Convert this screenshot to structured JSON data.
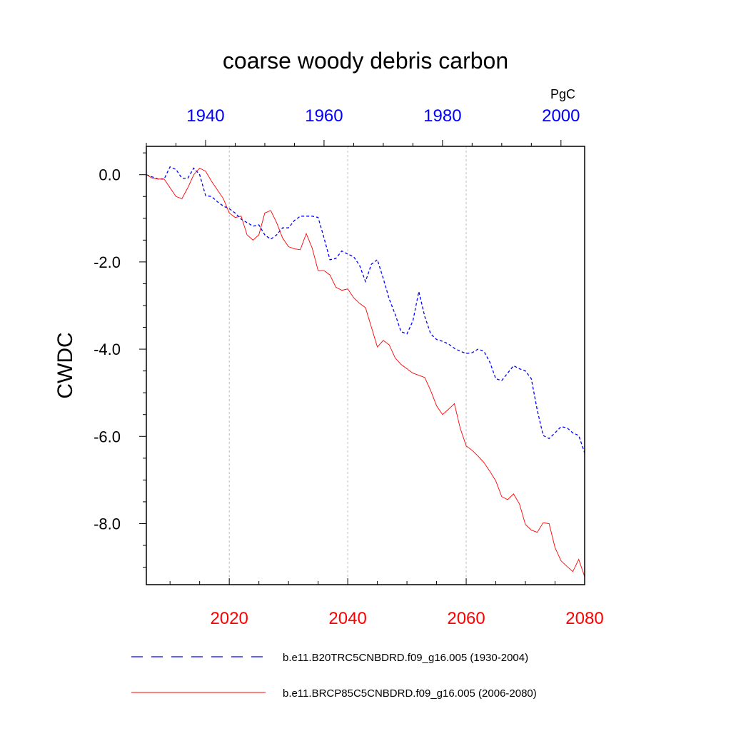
{
  "chart_data": {
    "type": "line",
    "title": "coarse woody debris carbon",
    "ylabel": "CWDC",
    "units": "PgC",
    "ylim": [
      -9.4,
      0.65
    ],
    "yticks": [
      0.0,
      -2.0,
      -4.0,
      -6.0,
      -8.0
    ],
    "ytick_labels": [
      "0.0",
      "-2.0",
      "-4.0",
      "-6.0",
      "-8.0"
    ],
    "grid": "vertical dashed at labeled bottom ticks",
    "legend_position": "bottom",
    "series": [
      {
        "name": "b.e11.B20TRC5CNBDRD.f09_g16.005 (1930-2004)",
        "axis": "top",
        "color": "#0000ff",
        "dash": "dashed",
        "xlim": [
          1930,
          2004
        ],
        "xticks": [
          1940,
          1960,
          1980,
          2000
        ],
        "xtick_labels": [
          "1940",
          "1960",
          "1980",
          "2000"
        ],
        "x": [
          1930,
          1931,
          1932,
          1933,
          1934,
          1935,
          1936,
          1937,
          1938,
          1939,
          1940,
          1941,
          1942,
          1943,
          1944,
          1945,
          1946,
          1947,
          1948,
          1949,
          1950,
          1951,
          1952,
          1953,
          1954,
          1955,
          1956,
          1957,
          1958,
          1959,
          1960,
          1961,
          1962,
          1963,
          1964,
          1965,
          1966,
          1967,
          1968,
          1969,
          1970,
          1971,
          1972,
          1973,
          1974,
          1975,
          1976,
          1977,
          1978,
          1979,
          1980,
          1981,
          1982,
          1983,
          1984,
          1985,
          1986,
          1987,
          1988,
          1989,
          1990,
          1991,
          1992,
          1993,
          1994,
          1995,
          1996,
          1997,
          1998,
          1999,
          2000,
          2001,
          2002,
          2003,
          2004
        ],
        "values": [
          0.0,
          -0.05,
          -0.1,
          -0.1,
          0.18,
          0.12,
          -0.08,
          -0.08,
          0.15,
          0.0,
          -0.48,
          -0.5,
          -0.62,
          -0.72,
          -0.78,
          -0.88,
          -1.02,
          -1.1,
          -1.18,
          -1.15,
          -1.38,
          -1.48,
          -1.38,
          -1.22,
          -1.22,
          -1.05,
          -0.95,
          -0.95,
          -0.95,
          -0.98,
          -1.45,
          -1.95,
          -1.92,
          -1.75,
          -1.82,
          -1.88,
          -2.08,
          -2.45,
          -2.05,
          -1.95,
          -2.38,
          -2.85,
          -3.2,
          -3.6,
          -3.65,
          -3.35,
          -2.68,
          -3.25,
          -3.65,
          -3.78,
          -3.82,
          -3.88,
          -3.98,
          -4.05,
          -4.1,
          -4.08,
          -4.0,
          -4.05,
          -4.3,
          -4.68,
          -4.72,
          -4.55,
          -4.38,
          -4.45,
          -4.5,
          -4.68,
          -5.4,
          -5.98,
          -6.05,
          -5.92,
          -5.78,
          -5.8,
          -5.92,
          -5.98,
          -6.38
        ]
      },
      {
        "name": "b.e11.BRCP85C5CNBDRD.f09_g16.005 (2006-2080)",
        "axis": "bottom",
        "color": "#ff0000",
        "dash": "solid",
        "xlim": [
          2006,
          2080
        ],
        "xticks": [
          2020,
          2040,
          2060,
          2080
        ],
        "xtick_labels": [
          "2020",
          "2040",
          "2060",
          "2080"
        ],
        "x": [
          2006,
          2007,
          2008,
          2009,
          2010,
          2011,
          2012,
          2013,
          2014,
          2015,
          2016,
          2017,
          2018,
          2019,
          2020,
          2021,
          2022,
          2023,
          2024,
          2025,
          2026,
          2027,
          2028,
          2029,
          2030,
          2031,
          2032,
          2033,
          2034,
          2035,
          2036,
          2037,
          2038,
          2039,
          2040,
          2041,
          2042,
          2043,
          2044,
          2045,
          2046,
          2047,
          2048,
          2049,
          2050,
          2051,
          2052,
          2053,
          2054,
          2055,
          2056,
          2057,
          2058,
          2059,
          2060,
          2061,
          2062,
          2063,
          2064,
          2065,
          2066,
          2067,
          2068,
          2069,
          2070,
          2071,
          2072,
          2073,
          2074,
          2075,
          2076,
          2077,
          2078,
          2079,
          2080
        ],
        "values": [
          0.0,
          -0.08,
          -0.1,
          -0.1,
          -0.3,
          -0.5,
          -0.55,
          -0.3,
          0.0,
          0.15,
          0.08,
          -0.15,
          -0.35,
          -0.55,
          -0.88,
          -0.98,
          -0.95,
          -1.38,
          -1.5,
          -1.38,
          -0.88,
          -0.82,
          -1.1,
          -1.45,
          -1.65,
          -1.7,
          -1.72,
          -1.35,
          -1.68,
          -2.2,
          -2.2,
          -2.3,
          -2.58,
          -2.65,
          -2.62,
          -2.82,
          -2.95,
          -3.05,
          -3.5,
          -3.95,
          -3.8,
          -3.9,
          -4.2,
          -4.35,
          -4.45,
          -4.55,
          -4.6,
          -4.65,
          -4.95,
          -5.3,
          -5.5,
          -5.38,
          -5.25,
          -5.82,
          -6.22,
          -6.32,
          -6.45,
          -6.6,
          -6.8,
          -7.02,
          -7.38,
          -7.45,
          -7.32,
          -7.55,
          -8.02,
          -8.15,
          -8.2,
          -7.98,
          -8.0,
          -8.55,
          -8.85,
          -8.98,
          -9.1,
          -8.82,
          -9.22
        ]
      }
    ]
  }
}
